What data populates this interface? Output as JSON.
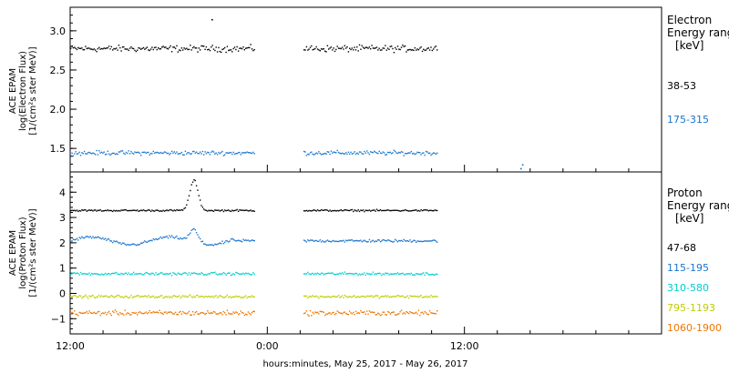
{
  "chart_data": [
    {
      "type": "scatter",
      "panel": "electron",
      "ylabel_lines": [
        "ACE EPAM",
        "log(Electron Flux)",
        "[1/(cm²s ster MeV)]"
      ],
      "ylim": [
        1.2,
        3.3
      ],
      "yticks": [
        1.5,
        2.0,
        2.5,
        3.0
      ],
      "ytick_labels": [
        "1.5",
        "2.0",
        "2.5",
        "3.0"
      ],
      "legend_title": [
        "Electron",
        "Energy range",
        "[keV]"
      ],
      "series": [
        {
          "name": "38-53",
          "color": "#000000",
          "base": 2.78,
          "spread": 0.06,
          "outliers": [
            [
              8.6,
              3.15
            ]
          ]
        },
        {
          "name": "175-315",
          "color": "#1874cd",
          "base": 1.45,
          "spread": 0.04,
          "outliers": [
            [
              27.4,
              1.25
            ],
            [
              27.5,
              1.3
            ]
          ]
        }
      ]
    },
    {
      "type": "scatter",
      "panel": "proton",
      "ylabel_lines": [
        "ACE EPAM",
        "log(Proton Flux)",
        "[1/(cm²s ster MeV)]"
      ],
      "ylim": [
        -1.6,
        4.8
      ],
      "yticks": [
        -1,
        0,
        1,
        2,
        3,
        4
      ],
      "ytick_labels": [
        "−1",
        "0",
        "1",
        "2",
        "3",
        "4"
      ],
      "legend_title": [
        "Proton",
        "Energy range",
        "[keV]"
      ],
      "series": [
        {
          "name": "47-68",
          "color": "#000000",
          "base": 3.3,
          "spread": 0.05,
          "peak": 4.5
        },
        {
          "name": "115-195",
          "color": "#1874cd",
          "base": 2.1,
          "spread": 0.08,
          "peak": 2.6
        },
        {
          "name": "310-580",
          "color": "#00cdcd",
          "base": 0.8,
          "spread": 0.08
        },
        {
          "name": "795-1193",
          "color": "#bfcd00",
          "base": -0.1,
          "spread": 0.08
        },
        {
          "name": "1060-1900",
          "color": "#ee7600",
          "base": -0.75,
          "spread": 0.14
        }
      ]
    }
  ],
  "x_axis": {
    "range_hours": [
      0,
      36
    ],
    "tick_positions": [
      0,
      12,
      24
    ],
    "tick_labels": [
      "12:00",
      "0:00",
      "12:00"
    ],
    "xlabel": "hours:minutes, May 25, 2017 - May 26, 2017",
    "data_gap_hours": [
      11.2,
      14.2
    ],
    "data_end_hours": 22.3
  }
}
